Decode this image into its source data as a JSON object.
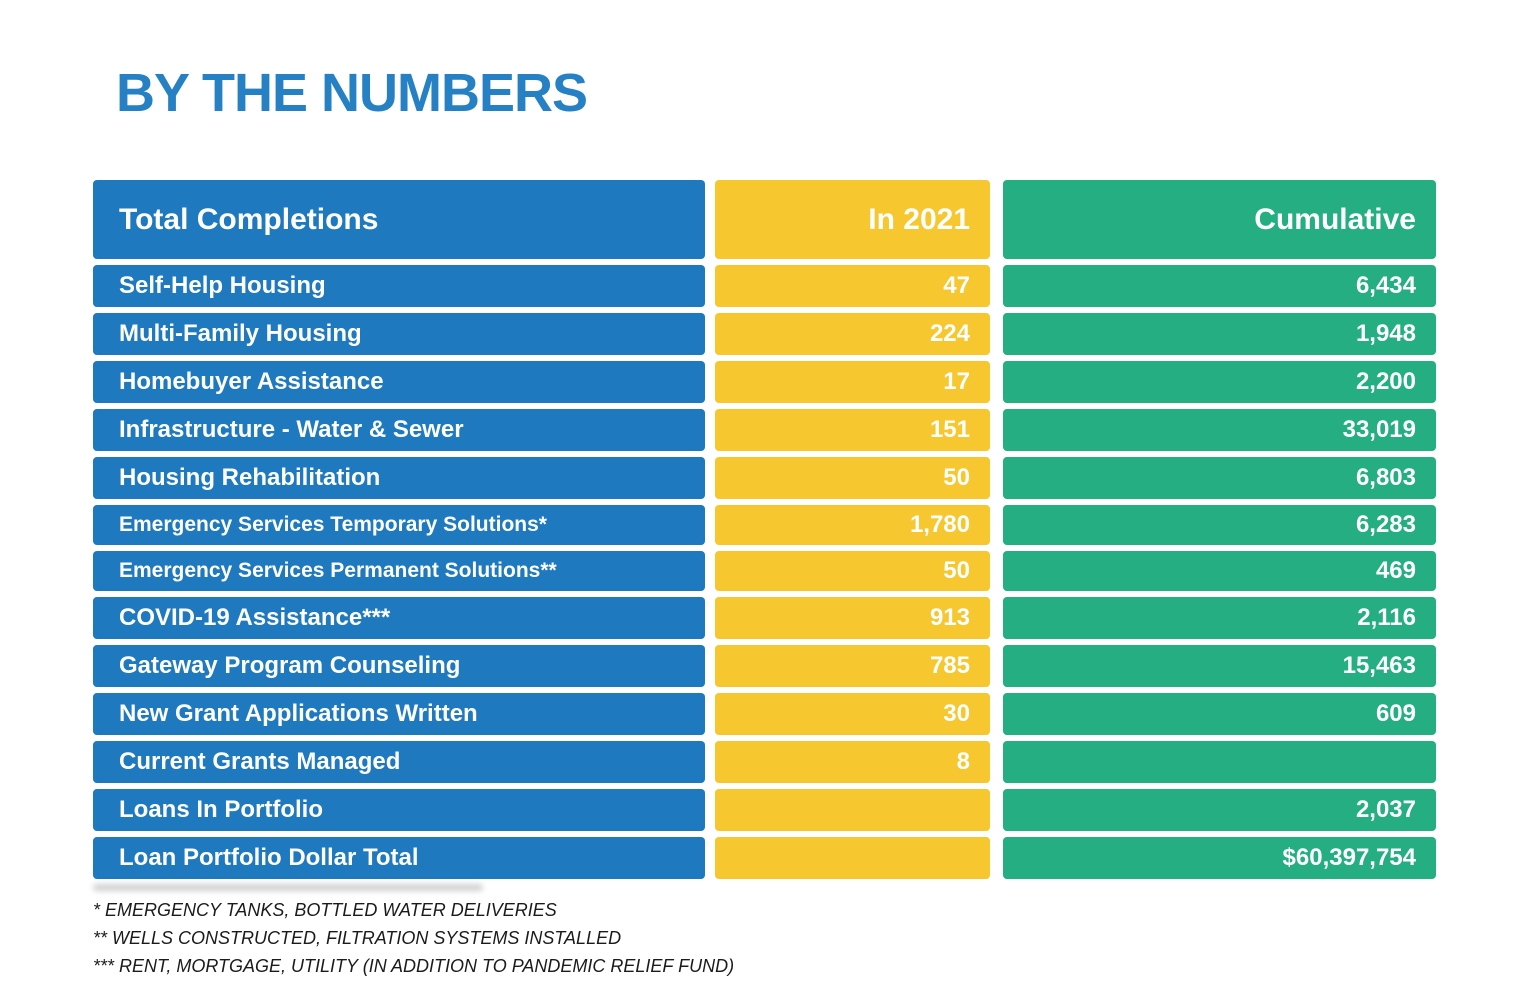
{
  "colors": {
    "title_blue": "#2581C4",
    "row_blue": "#1E79BE",
    "yellow": "#F6C72F",
    "green": "#25AE82",
    "text_on_cells": "#FFFFFF",
    "footnote_text": "#1B1B1B"
  },
  "chart_data": {
    "type": "table",
    "title": "BY THE NUMBERS",
    "header": {
      "label": "Total Completions",
      "in2021": "In 2021",
      "cumulative": "Cumulative"
    },
    "rows": [
      {
        "label": "Self-Help Housing",
        "in2021": "47",
        "cumulative": "6,434"
      },
      {
        "label": "Multi-Family Housing",
        "in2021": "224",
        "cumulative": "1,948"
      },
      {
        "label": "Homebuyer Assistance",
        "in2021": "17",
        "cumulative": "2,200"
      },
      {
        "label": "Infrastructure - Water & Sewer",
        "in2021": "151",
        "cumulative": "33,019"
      },
      {
        "label": "Housing Rehabilitation",
        "in2021": "50",
        "cumulative": "6,803"
      },
      {
        "label": "Emergency Services Temporary Solutions*",
        "in2021": "1,780",
        "cumulative": "6,283"
      },
      {
        "label": "Emergency Services Permanent Solutions**",
        "in2021": "50",
        "cumulative": "469"
      },
      {
        "label": "COVID-19 Assistance***",
        "in2021": "913",
        "cumulative": "2,116"
      },
      {
        "label": "Gateway Program Counseling",
        "in2021": "785",
        "cumulative": "15,463"
      },
      {
        "label": "New Grant Applications Written",
        "in2021": "30",
        "cumulative": "609"
      },
      {
        "label": "Current Grants Managed",
        "in2021": "8",
        "cumulative": ""
      },
      {
        "label": "Loans In Portfolio",
        "in2021": "",
        "cumulative": "2,037"
      },
      {
        "label": "Loan Portfolio Dollar Total",
        "in2021": "",
        "cumulative": "$60,397,754"
      }
    ],
    "footnotes": [
      "* EMERGENCY TANKS, BOTTLED WATER DELIVERIES",
      "** WELLS CONSTRUCTED, FILTRATION SYSTEMS INSTALLED",
      "*** RENT, MORTGAGE, UTILITY (IN ADDITION TO PANDEMIC RELIEF FUND)"
    ]
  }
}
